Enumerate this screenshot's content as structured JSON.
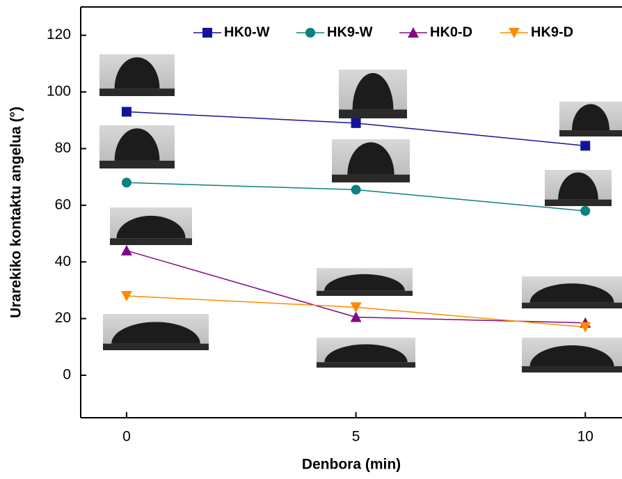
{
  "chart_data": {
    "type": "line",
    "x_label": "Denbora (min)",
    "y_label": "Urarekiko kontaktu angelua (°)",
    "x": [
      0,
      5,
      10
    ],
    "xlim": [
      -1,
      10.8
    ],
    "xticks": [
      0,
      5,
      10
    ],
    "ylim": [
      -15,
      130
    ],
    "yticks": [
      0,
      20,
      40,
      60,
      80,
      100,
      120
    ],
    "legend": "top",
    "series": [
      {
        "name": "HK0-W",
        "color": "#14149a",
        "marker": "square",
        "values": [
          93,
          89,
          81
        ]
      },
      {
        "name": "HK9-W",
        "color": "#0a8080",
        "marker": "circle",
        "values": [
          68,
          65.5,
          58
        ]
      },
      {
        "name": "HK0-D",
        "color": "#820a82",
        "marker": "triangle-up",
        "values": [
          44,
          20.5,
          18.5
        ]
      },
      {
        "name": "HK9-D",
        "color": "#ff8a00",
        "marker": "triangle-down",
        "values": [
          28,
          24,
          17
        ]
      }
    ]
  }
}
